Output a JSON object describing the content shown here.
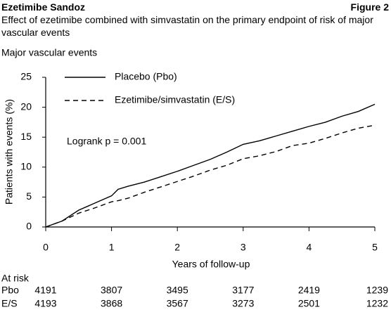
{
  "header": {
    "title": "Ezetimibe Sandoz",
    "figure": "Figure 2",
    "subtitle": "Effect of ezetimibe combined with simvastatin on the primary endpoint of risk of major vascular events"
  },
  "chart_data": {
    "type": "line",
    "title": "Major vascular events",
    "x_label": "Years of follow-up",
    "y_label": "Patients with events (%)",
    "x": [
      0,
      0.25,
      0.5,
      0.75,
      1,
      1.1,
      1.25,
      1.5,
      1.75,
      2,
      2.25,
      2.5,
      2.75,
      3,
      3.25,
      3.5,
      3.75,
      4,
      4.25,
      4.5,
      4.75,
      5
    ],
    "series": [
      {
        "name": "Placebo (Pbo)",
        "color": "#000000",
        "style": "solid",
        "values": [
          0,
          1.0,
          2.8,
          4.0,
          5.2,
          6.3,
          6.8,
          7.5,
          8.4,
          9.3,
          10.3,
          11.3,
          12.5,
          13.8,
          14.4,
          15.2,
          16.0,
          16.8,
          17.5,
          18.5,
          19.3,
          20.5
        ]
      },
      {
        "name": "Ezetimibe/simvastatin (E/S)",
        "color": "#000000",
        "style": "dashed",
        "values": [
          0,
          1.0,
          2.3,
          3.2,
          4.2,
          4.4,
          4.8,
          5.8,
          6.7,
          7.6,
          8.5,
          9.5,
          10.3,
          11.4,
          11.9,
          12.6,
          13.6,
          14.0,
          14.8,
          15.7,
          16.5,
          17.0
        ]
      }
    ],
    "xlim": [
      0,
      5
    ],
    "xticks": [
      0,
      1,
      2,
      3,
      4,
      5
    ],
    "ylim": [
      0,
      25
    ],
    "yticks": [
      0,
      5,
      10,
      15,
      20,
      25
    ],
    "annotation": "Logrank p = 0.001",
    "at_risk": {
      "title": "At risk",
      "rows": [
        {
          "name": "Pbo",
          "values": [
            4191,
            3807,
            3495,
            3177,
            2419,
            1239
          ]
        },
        {
          "name": "E/S",
          "values": [
            4193,
            3868,
            3567,
            3273,
            2501,
            1232
          ]
        }
      ]
    }
  }
}
